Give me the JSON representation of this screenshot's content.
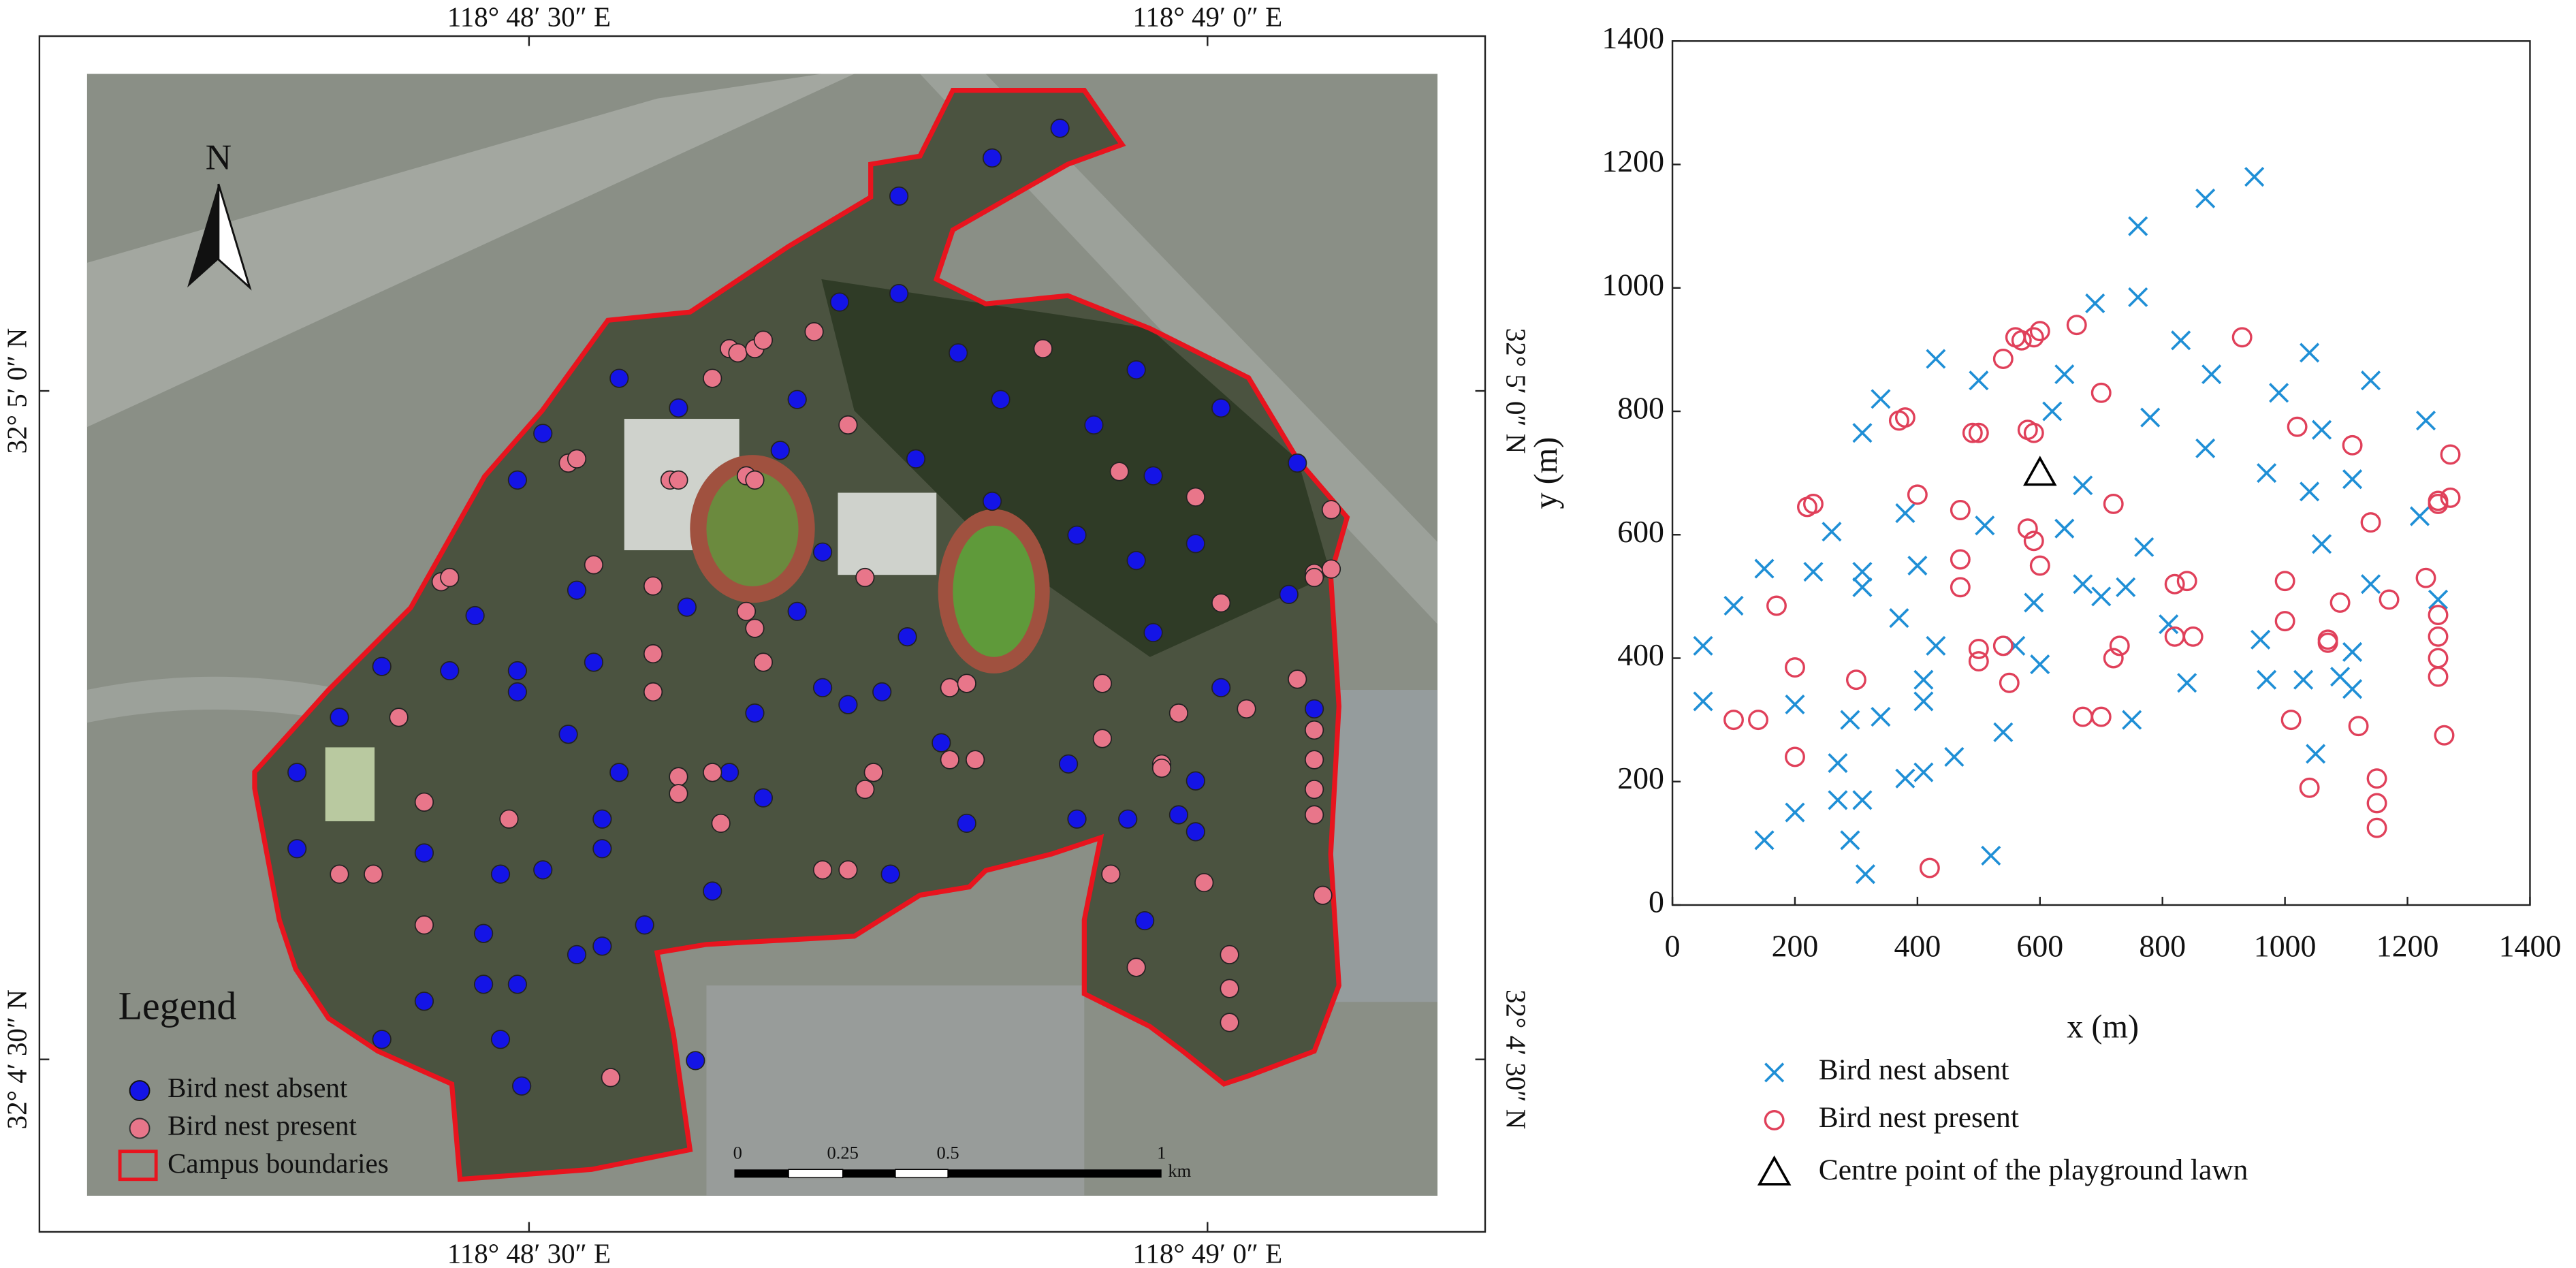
{
  "chart_data": [
    {
      "type": "map",
      "lon_labels": [
        "118° 48′ 30″ E",
        "118° 49′ 0″ E"
      ],
      "lat_labels": [
        "32° 5′ 0″ N",
        "32° 4′ 30″ N"
      ],
      "north": "N",
      "legend_title": "Legend",
      "legend": [
        "Bird nest absent",
        "Bird nest present",
        "Campus boundaries"
      ],
      "absent_color": "#1414e6",
      "present_color": "#e8768a",
      "boundary_color": "#e8141e",
      "scalebar_labels": [
        "0",
        "0.25",
        "0.5",
        "1"
      ],
      "scalebar_unit": "km"
    },
    {
      "type": "scatter",
      "xlabel": "x (m)",
      "ylabel": "y (m)",
      "xlim": [
        0,
        1400
      ],
      "ylim": [
        0,
        1400
      ],
      "xticks": [
        0,
        200,
        400,
        600,
        800,
        1000,
        1200,
        1400
      ],
      "yticks": [
        0,
        200,
        400,
        600,
        800,
        1000,
        1200,
        1400
      ],
      "series": [
        {
          "name": "Bird nest absent",
          "color": "#1f8fd6",
          "marker": "x",
          "x": [
            50,
            50,
            100,
            150,
            150,
            200,
            200,
            230,
            260,
            270,
            270,
            290,
            290,
            310,
            310,
            310,
            310,
            315,
            340,
            340,
            370,
            380,
            380,
            400,
            410,
            410,
            410,
            430,
            430,
            460,
            500,
            510,
            520,
            540,
            560,
            590,
            600,
            620,
            640,
            640,
            670,
            670,
            690,
            700,
            740,
            750,
            760,
            760,
            770,
            780,
            810,
            830,
            840,
            870,
            870,
            880,
            950,
            960,
            970,
            970,
            990,
            1030,
            1040,
            1040,
            1050,
            1060,
            1060,
            1090,
            1110,
            1110,
            1110,
            1140,
            1140,
            1220,
            1230,
            1250
          ],
          "y": [
            420,
            330,
            485,
            545,
            105,
            325,
            150,
            540,
            605,
            230,
            170,
            300,
            105,
            515,
            540,
            765,
            170,
            50,
            820,
            305,
            465,
            635,
            205,
            550,
            365,
            330,
            215,
            420,
            885,
            240,
            850,
            615,
            80,
            280,
            420,
            490,
            390,
            800,
            860,
            610,
            680,
            520,
            975,
            500,
            515,
            300,
            1100,
            985,
            580,
            790,
            455,
            915,
            360,
            1145,
            740,
            860,
            1180,
            430,
            700,
            365,
            830,
            365,
            670,
            895,
            245,
            770,
            585,
            370,
            690,
            410,
            350,
            850,
            520,
            630,
            785,
            495
          ]
        },
        {
          "name": "Bird nest present",
          "color": "#e0405a",
          "marker": "circle",
          "x": [
            100,
            140,
            170,
            200,
            200,
            220,
            230,
            300,
            370,
            380,
            400,
            420,
            470,
            470,
            470,
            490,
            500,
            500,
            500,
            540,
            540,
            550,
            560,
            570,
            580,
            580,
            590,
            590,
            590,
            600,
            600,
            660,
            670,
            700,
            700,
            720,
            720,
            730,
            820,
            820,
            840,
            850,
            930,
            1000,
            1000,
            1010,
            1020,
            1040,
            1070,
            1070,
            1090,
            1110,
            1120,
            1140,
            1150,
            1150,
            1150,
            1170,
            1230,
            1250,
            1250,
            1250,
            1250,
            1250,
            1250,
            1260,
            1270,
            1270
          ],
          "y": [
            300,
            300,
            485,
            385,
            240,
            645,
            650,
            365,
            785,
            790,
            665,
            60,
            640,
            560,
            515,
            765,
            765,
            415,
            395,
            885,
            420,
            360,
            920,
            915,
            770,
            610,
            765,
            920,
            590,
            550,
            930,
            940,
            305,
            830,
            305,
            650,
            400,
            420,
            520,
            435,
            525,
            435,
            920,
            525,
            460,
            300,
            775,
            190,
            430,
            425,
            490,
            745,
            290,
            620,
            205,
            165,
            125,
            495,
            530,
            470,
            435,
            400,
            370,
            655,
            650,
            275,
            730,
            660
          ]
        },
        {
          "name": "Centre point of the playground lawn",
          "color": "#000000",
          "marker": "triangle",
          "x": [
            600
          ],
          "y": [
            700
          ]
        }
      ]
    }
  ]
}
